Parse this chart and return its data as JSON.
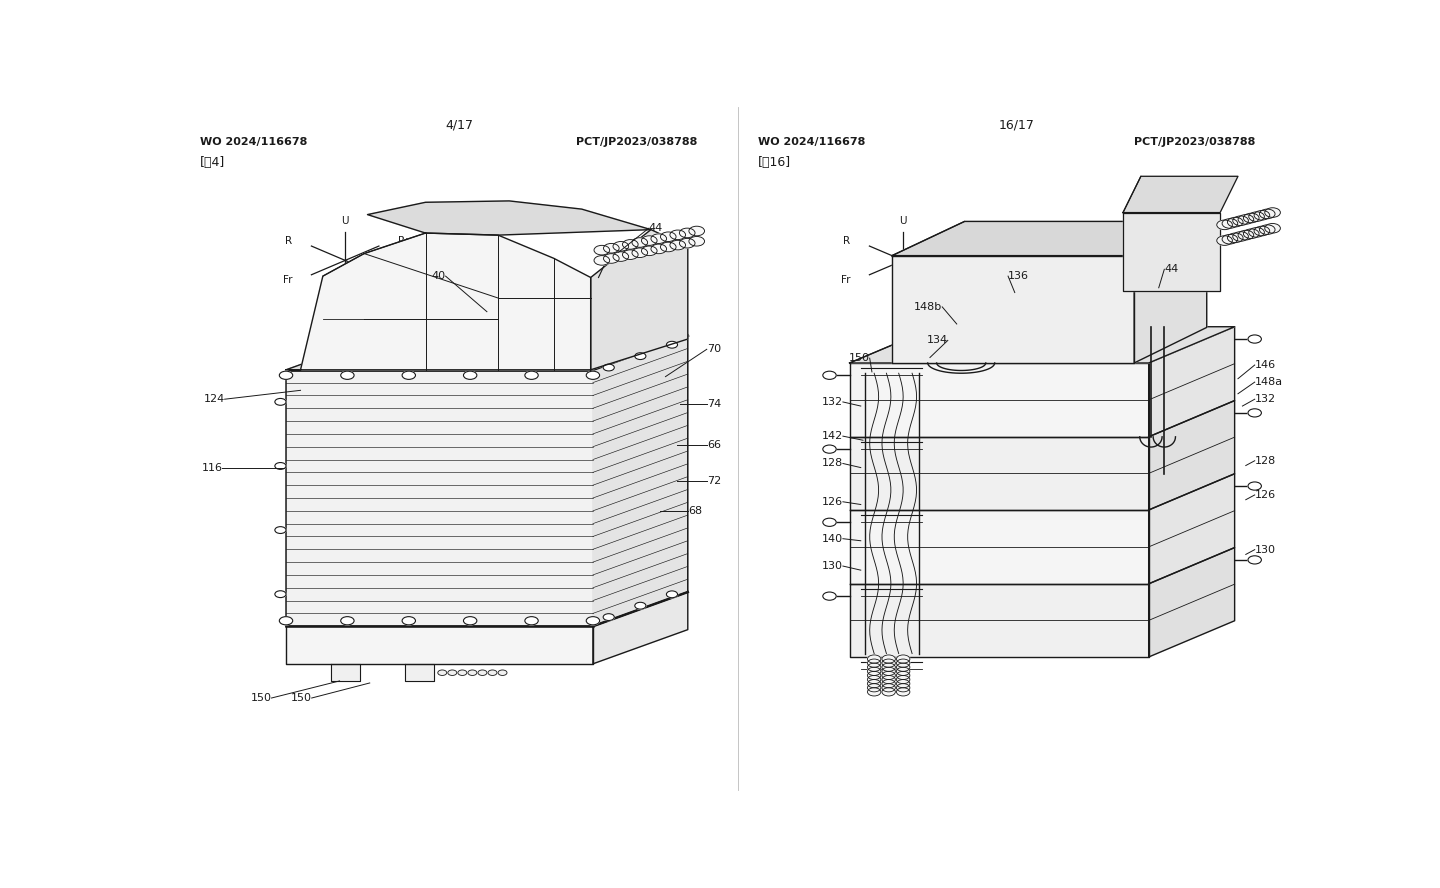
{
  "bg_color": "#ffffff",
  "text_color": "#1a1a1a",
  "line_color": "#1a1a1a",
  "fig_width": 14.4,
  "fig_height": 8.88,
  "header_left_page1": "4/17",
  "header_wo1": "WO 2024/116678",
  "header_pct1": "PCT/JP2023/038788",
  "fig_label1": "[围4]",
  "header_left_page2": "16/17",
  "header_wo2": "WO 2024/116678",
  "header_pct2": "PCT/JP2023/038788",
  "fig_label2": "[围16]"
}
